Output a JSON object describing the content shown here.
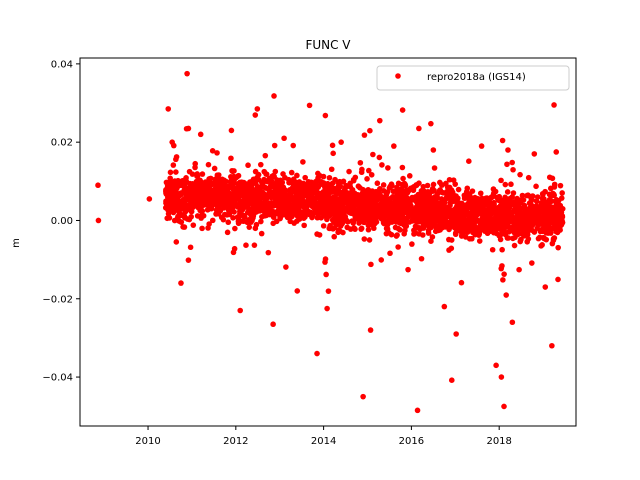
{
  "chart_data": {
    "type": "scatter",
    "title": "FUNC V",
    "xlabel": "",
    "ylabel": "m",
    "xlim": [
      2008.45,
      2019.75
    ],
    "ylim": [
      -0.0525,
      0.0415
    ],
    "xticks": [
      2010,
      2012,
      2014,
      2016,
      2018
    ],
    "xtick_labels": [
      "2010",
      "2012",
      "2014",
      "2016",
      "2018"
    ],
    "yticks": [
      -0.04,
      -0.02,
      0.0,
      0.02,
      0.04
    ],
    "ytick_labels": [
      "−0.04",
      "−0.02",
      "0.00",
      "0.02",
      "0.04"
    ],
    "grid": false,
    "legend_position": "upper right",
    "colors": {
      "series": "#ff0000",
      "axes": "#000000",
      "background": "#ffffff"
    },
    "series": [
      {
        "name": "repro2018a (IGS14)",
        "marker": "circle",
        "color": "#ff0000",
        "points": [
          [
            2008.86,
            0.009
          ],
          [
            2008.87,
            0.0
          ],
          [
            2010.03,
            0.0055
          ],
          [
            2010.46,
            0.0285
          ],
          [
            2010.89,
            0.0375
          ],
          [
            2010.92,
            0.0235
          ],
          [
            2012.49,
            0.0285
          ],
          [
            2012.87,
            0.0318
          ],
          [
            2013.68,
            0.0294
          ],
          [
            2014.04,
            0.0268
          ],
          [
            2014.93,
            0.0218
          ],
          [
            2015.28,
            0.0255
          ],
          [
            2015.8,
            0.0282
          ],
          [
            2016.17,
            0.0235
          ],
          [
            2019.25,
            0.0295
          ],
          [
            2012.85,
            -0.0265
          ],
          [
            2013.85,
            -0.034
          ],
          [
            2014.08,
            -0.0225
          ],
          [
            2014.9,
            -0.045
          ],
          [
            2015.07,
            -0.028
          ],
          [
            2016.14,
            -0.0485
          ],
          [
            2016.92,
            -0.0408
          ],
          [
            2017.93,
            -0.037
          ],
          [
            2018.11,
            -0.0475
          ],
          [
            2019.2,
            -0.032
          ],
          [
            2017.02,
            -0.029
          ],
          [
            2018.05,
            -0.04
          ],
          [
            2010.75,
            -0.016
          ],
          [
            2012.1,
            -0.023
          ],
          [
            2013.4,
            -0.018
          ],
          [
            2016.75,
            -0.022
          ],
          [
            2018.3,
            -0.026
          ],
          [
            2019.05,
            -0.017
          ],
          [
            2010.55,
            0.02
          ],
          [
            2011.2,
            0.022
          ],
          [
            2011.9,
            0.023
          ],
          [
            2013.1,
            0.021
          ],
          [
            2014.4,
            0.02
          ],
          [
            2015.6,
            0.019
          ],
          [
            2016.5,
            0.018
          ],
          [
            2017.6,
            0.019
          ],
          [
            2018.2,
            0.018
          ],
          [
            2018.8,
            0.017
          ],
          [
            2019.3,
            0.0175
          ]
        ],
        "dense_bands": [
          {
            "x_range": [
              2010.4,
              2011.05
            ],
            "center": 0.006,
            "spread": 0.0048
          },
          {
            "x_range": [
              2011.05,
              2012.0
            ],
            "center": 0.0065,
            "spread": 0.005
          },
          {
            "x_range": [
              2012.0,
              2013.0
            ],
            "center": 0.006,
            "spread": 0.0053
          },
          {
            "x_range": [
              2013.0,
              2014.0
            ],
            "center": 0.0055,
            "spread": 0.005
          },
          {
            "x_range": [
              2014.0,
              2015.0
            ],
            "center": 0.004,
            "spread": 0.0055
          },
          {
            "x_range": [
              2015.0,
              2016.0
            ],
            "center": 0.0035,
            "spread": 0.005
          },
          {
            "x_range": [
              2016.0,
              2017.0
            ],
            "center": 0.003,
            "spread": 0.0055
          },
          {
            "x_range": [
              2017.0,
              2018.0
            ],
            "center": 0.0015,
            "spread": 0.005
          },
          {
            "x_range": [
              2018.0,
              2019.45
            ],
            "center": 0.001,
            "spread": 0.005
          }
        ]
      }
    ]
  }
}
